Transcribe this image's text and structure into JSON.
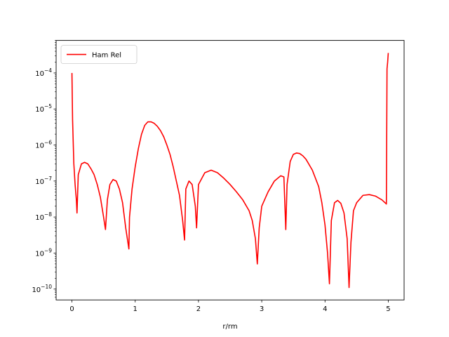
{
  "chart_data": {
    "type": "line",
    "title": "",
    "xlabel": "r/rm",
    "ylabel": "",
    "xlim": [
      -0.25,
      5.25
    ],
    "ylim": [
      5e-11,
      0.0008
    ],
    "yscale": "log",
    "grid": false,
    "legend_position": "top-left",
    "x_ticks": [
      {
        "value": 0,
        "label": "0"
      },
      {
        "value": 1,
        "label": "1"
      },
      {
        "value": 2,
        "label": "2"
      },
      {
        "value": 3,
        "label": "3"
      },
      {
        "value": 4,
        "label": "4"
      },
      {
        "value": 5,
        "label": "5"
      }
    ],
    "y_ticks": [
      {
        "value": 1e-10,
        "base": "10",
        "exp": "−10"
      },
      {
        "value": 1e-09,
        "base": "10",
        "exp": "−9"
      },
      {
        "value": 1e-08,
        "base": "10",
        "exp": "−8"
      },
      {
        "value": 1e-07,
        "base": "10",
        "exp": "−7"
      },
      {
        "value": 1e-06,
        "base": "10",
        "exp": "−6"
      },
      {
        "value": 1e-05,
        "base": "10",
        "exp": "−5"
      },
      {
        "value": 0.0001,
        "base": "10",
        "exp": "−4"
      }
    ],
    "series": [
      {
        "name": "Ham Rel",
        "color": "#ff0000",
        "x": [
          0.0,
          0.01,
          0.03,
          0.05,
          0.07,
          0.08,
          0.1,
          0.15,
          0.2,
          0.25,
          0.3,
          0.35,
          0.4,
          0.45,
          0.5,
          0.53,
          0.56,
          0.6,
          0.65,
          0.7,
          0.75,
          0.8,
          0.85,
          0.9,
          0.91,
          0.95,
          1.0,
          1.05,
          1.1,
          1.15,
          1.2,
          1.25,
          1.3,
          1.35,
          1.4,
          1.45,
          1.5,
          1.55,
          1.6,
          1.65,
          1.7,
          1.75,
          1.78,
          1.8,
          1.85,
          1.9,
          1.95,
          1.97,
          2.0,
          2.1,
          2.2,
          2.3,
          2.4,
          2.5,
          2.6,
          2.7,
          2.8,
          2.85,
          2.9,
          2.93,
          2.96,
          3.0,
          3.1,
          3.2,
          3.3,
          3.35,
          3.38,
          3.4,
          3.45,
          3.5,
          3.55,
          3.6,
          3.65,
          3.7,
          3.8,
          3.9,
          3.95,
          4.0,
          4.04,
          4.07,
          4.1,
          4.15,
          4.2,
          4.25,
          4.3,
          4.35,
          4.38,
          4.41,
          4.45,
          4.5,
          4.6,
          4.7,
          4.8,
          4.9,
          4.97,
          4.98,
          4.99,
          5.0
        ],
        "y": [
          0.0001,
          5e-06,
          3e-07,
          8e-08,
          3e-08,
          1.3e-08,
          1.5e-07,
          3e-07,
          3.3e-07,
          3e-07,
          2.2e-07,
          1.5e-07,
          8e-08,
          3.5e-08,
          1e-08,
          4.5e-09,
          3e-08,
          8e-08,
          1.1e-07,
          1e-07,
          6e-08,
          2.5e-08,
          5e-09,
          1.3e-09,
          1e-08,
          6e-08,
          2.5e-07,
          8e-07,
          2e-06,
          3.5e-06,
          4.4e-06,
          4.4e-06,
          4e-06,
          3.3e-06,
          2.5e-06,
          1.7e-06,
          1e-06,
          5.5e-07,
          2.5e-07,
          1e-07,
          4e-08,
          8e-09,
          2.3e-09,
          6e-08,
          1e-07,
          8e-08,
          2e-08,
          5e-09,
          8e-08,
          1.7e-07,
          2e-07,
          1.7e-07,
          1.2e-07,
          8e-08,
          5e-08,
          3e-08,
          1.5e-08,
          8e-09,
          2.5e-09,
          5e-10,
          5e-09,
          2e-08,
          5e-08,
          1e-07,
          1.4e-07,
          1.3e-07,
          4.5e-09,
          8e-08,
          3.5e-07,
          5.5e-07,
          6e-07,
          5.8e-07,
          5e-07,
          4e-07,
          2e-07,
          7e-08,
          2.5e-08,
          6e-09,
          1e-09,
          1.4e-10,
          8e-09,
          2.5e-08,
          2.9e-08,
          2.4e-08,
          1.3e-08,
          2.5e-09,
          1.1e-10,
          2e-09,
          1.5e-08,
          2.5e-08,
          4e-08,
          4.2e-08,
          3.8e-08,
          3e-08,
          2.3e-08,
          0.00013,
          0.0002,
          0.00036
        ]
      }
    ]
  }
}
